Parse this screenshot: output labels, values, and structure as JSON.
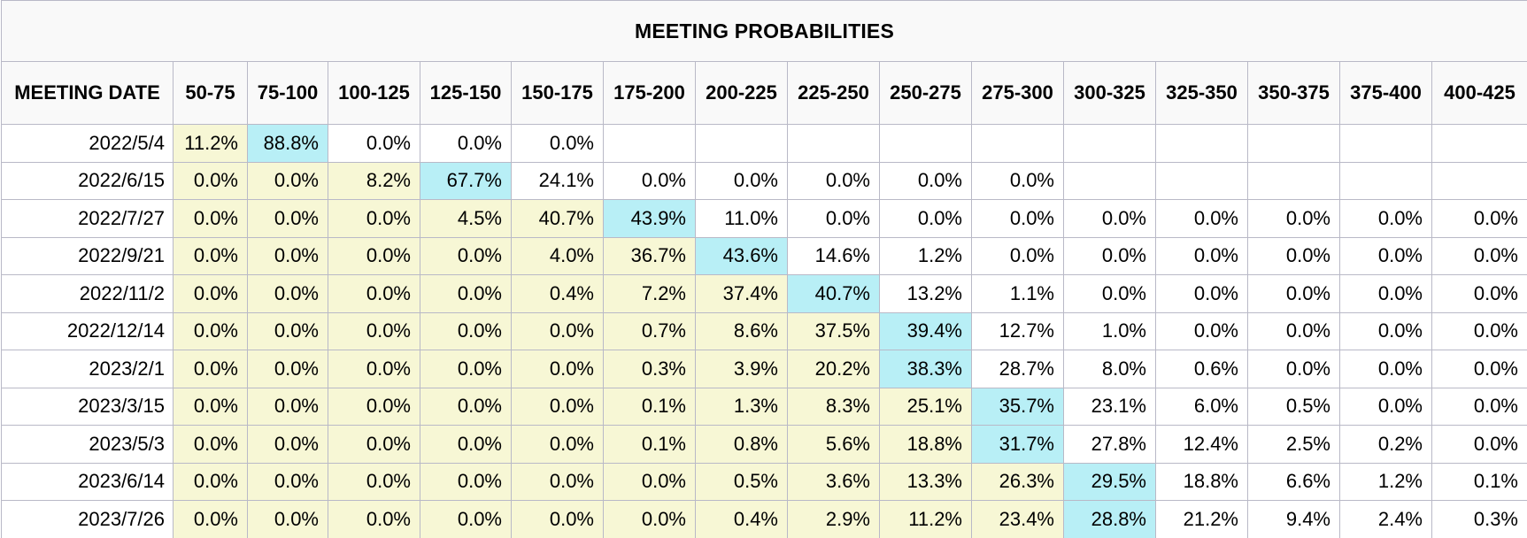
{
  "title": "MEETING PROBABILITIES",
  "header": {
    "date_label": "MEETING DATE",
    "ranges": [
      "50-75",
      "75-100",
      "100-125",
      "125-150",
      "150-175",
      "175-200",
      "200-225",
      "225-250",
      "250-275",
      "275-300",
      "300-325",
      "325-350",
      "350-375",
      "375-400",
      "400-425"
    ]
  },
  "rows": [
    {
      "date": "2022/5/4",
      "values": [
        "11.2%",
        "88.8%",
        "0.0%",
        "0.0%",
        "0.0%",
        "",
        "",
        "",
        "",
        "",
        "",
        "",
        "",
        "",
        ""
      ],
      "max_index": 1
    },
    {
      "date": "2022/6/15",
      "values": [
        "0.0%",
        "0.0%",
        "8.2%",
        "67.7%",
        "24.1%",
        "0.0%",
        "0.0%",
        "0.0%",
        "0.0%",
        "0.0%",
        "",
        "",
        "",
        "",
        ""
      ],
      "max_index": 3
    },
    {
      "date": "2022/7/27",
      "values": [
        "0.0%",
        "0.0%",
        "0.0%",
        "4.5%",
        "40.7%",
        "43.9%",
        "11.0%",
        "0.0%",
        "0.0%",
        "0.0%",
        "0.0%",
        "0.0%",
        "0.0%",
        "0.0%",
        "0.0%"
      ],
      "max_index": 5
    },
    {
      "date": "2022/9/21",
      "values": [
        "0.0%",
        "0.0%",
        "0.0%",
        "0.0%",
        "4.0%",
        "36.7%",
        "43.6%",
        "14.6%",
        "1.2%",
        "0.0%",
        "0.0%",
        "0.0%",
        "0.0%",
        "0.0%",
        "0.0%"
      ],
      "max_index": 6
    },
    {
      "date": "2022/11/2",
      "values": [
        "0.0%",
        "0.0%",
        "0.0%",
        "0.0%",
        "0.4%",
        "7.2%",
        "37.4%",
        "40.7%",
        "13.2%",
        "1.1%",
        "0.0%",
        "0.0%",
        "0.0%",
        "0.0%",
        "0.0%"
      ],
      "max_index": 7
    },
    {
      "date": "2022/12/14",
      "values": [
        "0.0%",
        "0.0%",
        "0.0%",
        "0.0%",
        "0.0%",
        "0.7%",
        "8.6%",
        "37.5%",
        "39.4%",
        "12.7%",
        "1.0%",
        "0.0%",
        "0.0%",
        "0.0%",
        "0.0%"
      ],
      "max_index": 8
    },
    {
      "date": "2023/2/1",
      "values": [
        "0.0%",
        "0.0%",
        "0.0%",
        "0.0%",
        "0.0%",
        "0.3%",
        "3.9%",
        "20.2%",
        "38.3%",
        "28.7%",
        "8.0%",
        "0.6%",
        "0.0%",
        "0.0%",
        "0.0%"
      ],
      "max_index": 8
    },
    {
      "date": "2023/3/15",
      "values": [
        "0.0%",
        "0.0%",
        "0.0%",
        "0.0%",
        "0.0%",
        "0.1%",
        "1.3%",
        "8.3%",
        "25.1%",
        "35.7%",
        "23.1%",
        "6.0%",
        "0.5%",
        "0.0%",
        "0.0%"
      ],
      "max_index": 9
    },
    {
      "date": "2023/5/3",
      "values": [
        "0.0%",
        "0.0%",
        "0.0%",
        "0.0%",
        "0.0%",
        "0.1%",
        "0.8%",
        "5.6%",
        "18.8%",
        "31.7%",
        "27.8%",
        "12.4%",
        "2.5%",
        "0.2%",
        "0.0%"
      ],
      "max_index": 9
    },
    {
      "date": "2023/6/14",
      "values": [
        "0.0%",
        "0.0%",
        "0.0%",
        "0.0%",
        "0.0%",
        "0.0%",
        "0.5%",
        "3.6%",
        "13.3%",
        "26.3%",
        "29.5%",
        "18.8%",
        "6.6%",
        "1.2%",
        "0.1%"
      ],
      "max_index": 10
    },
    {
      "date": "2023/7/26",
      "values": [
        "0.0%",
        "0.0%",
        "0.0%",
        "0.0%",
        "0.0%",
        "0.0%",
        "0.4%",
        "2.9%",
        "11.2%",
        "23.4%",
        "28.8%",
        "21.2%",
        "9.4%",
        "2.4%",
        "0.3%"
      ],
      "max_index": 10
    }
  ]
}
